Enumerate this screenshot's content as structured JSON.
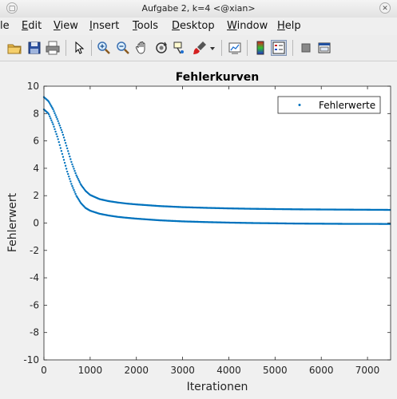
{
  "window": {
    "title": "Aufgabe 2, k=4 <@xian>"
  },
  "menu": [
    {
      "label": "le",
      "u": ""
    },
    {
      "label": "Edit",
      "u": "E"
    },
    {
      "label": "View",
      "u": "V"
    },
    {
      "label": "Insert",
      "u": "I"
    },
    {
      "label": "Tools",
      "u": "T"
    },
    {
      "label": "Desktop",
      "u": "D"
    },
    {
      "label": "Window",
      "u": "W"
    },
    {
      "label": "Help",
      "u": "H"
    }
  ],
  "toolbar": {
    "icons": [
      "open-folder-icon",
      "save-icon",
      "print-icon",
      "pointer-icon",
      "zoom-in-icon",
      "zoom-out-icon",
      "pan-hand-icon",
      "rotate-3d-icon",
      "data-cursor-icon",
      "brush-icon",
      "brush-dropdown-icon",
      "link-plot-icon",
      "colorbar-icon",
      "legend-icon",
      "hide-plot-tools-icon",
      "show-plot-tools-icon"
    ]
  },
  "chart_data": {
    "type": "scatter",
    "title": "Fehlerkurven",
    "xlabel": "Iterationen",
    "ylabel": "Fehlerwert",
    "xlim": [
      0,
      7500
    ],
    "ylim": [
      -10,
      10
    ],
    "xticks": [
      "0",
      "1000",
      "2000",
      "3000",
      "4000",
      "5000",
      "6000",
      "7000"
    ],
    "yticks": [
      "-10",
      "-8",
      "-6",
      "-4",
      "-2",
      "0",
      "2",
      "4",
      "6",
      "8",
      "10"
    ],
    "legend": {
      "position": "top-right",
      "entries": [
        "Fehlerwerte"
      ]
    },
    "color": "#0072bd",
    "grid": false,
    "series": [
      {
        "name": "Fehlerwerte",
        "x": [
          0,
          100,
          200,
          300,
          400,
          500,
          600,
          700,
          800,
          900,
          1000,
          1200,
          1400,
          1600,
          1800,
          2000,
          2500,
          3000,
          3500,
          4000,
          4500,
          5000,
          5500,
          6000,
          6500,
          7000,
          7500
        ],
        "y_upper": [
          9.2,
          8.9,
          8.3,
          7.5,
          6.6,
          5.5,
          4.4,
          3.5,
          2.8,
          2.35,
          2.05,
          1.75,
          1.6,
          1.5,
          1.42,
          1.36,
          1.24,
          1.16,
          1.11,
          1.07,
          1.04,
          1.02,
          1.0,
          0.99,
          0.98,
          0.97,
          0.96
        ],
        "y_lower": [
          8.3,
          8.0,
          7.2,
          6.2,
          5.0,
          3.8,
          2.8,
          2.0,
          1.45,
          1.1,
          0.9,
          0.68,
          0.55,
          0.45,
          0.38,
          0.32,
          0.2,
          0.12,
          0.07,
          0.03,
          0.0,
          -0.02,
          -0.04,
          -0.05,
          -0.06,
          -0.06,
          -0.07
        ]
      }
    ]
  }
}
